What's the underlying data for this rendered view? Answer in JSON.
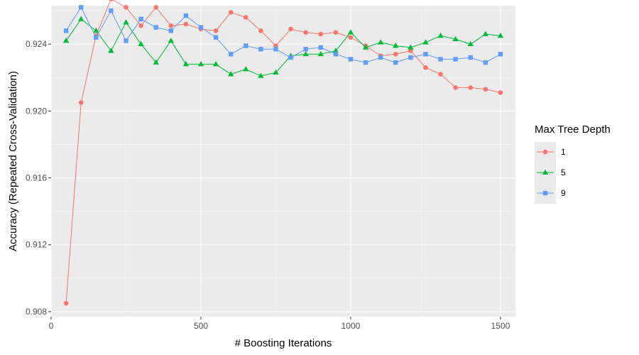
{
  "chart_data": {
    "type": "line",
    "title": "",
    "xlabel": "# Boosting Iterations",
    "ylabel": "Accuracy (Repeated Cross-Validation)",
    "xlim": [
      0,
      1550
    ],
    "ylim": [
      0.9077,
      0.9263
    ],
    "xticks": [
      0,
      500,
      1000,
      1500
    ],
    "xtick_labels": [
      "0",
      "500",
      "1000",
      "1500"
    ],
    "yticks": [
      0.908,
      0.912,
      0.916,
      0.92,
      0.924
    ],
    "ytick_labels": [
      "0.908",
      "0.912",
      "0.916",
      "0.920",
      "0.924"
    ],
    "grid": true,
    "legend": {
      "title": "Max Tree Depth",
      "position": "right"
    },
    "x": [
      50,
      100,
      150,
      200,
      250,
      300,
      350,
      400,
      450,
      500,
      550,
      600,
      650,
      700,
      750,
      800,
      850,
      900,
      950,
      1000,
      1050,
      1100,
      1150,
      1200,
      1250,
      1300,
      1350,
      1400,
      1450,
      1500
    ],
    "series": [
      {
        "name": "1",
        "color": "#F8766D",
        "marker": "circle",
        "values": [
          0.9085,
          0.9205,
          0.9245,
          0.9267,
          0.9262,
          0.9251,
          0.9262,
          0.9251,
          0.9252,
          0.9249,
          0.9248,
          0.9259,
          0.9256,
          0.9248,
          0.9239,
          0.9249,
          0.9247,
          0.9246,
          0.9247,
          0.9244,
          0.9239,
          0.9233,
          0.9234,
          0.9236,
          0.9226,
          0.9222,
          0.9214,
          0.9214,
          0.9213,
          0.9211
        ]
      },
      {
        "name": "5",
        "color": "#00BA38",
        "marker": "triangle",
        "values": [
          0.9242,
          0.9255,
          0.9248,
          0.9236,
          0.9253,
          0.924,
          0.9229,
          0.9242,
          0.9228,
          0.9228,
          0.9228,
          0.9222,
          0.9225,
          0.9221,
          0.9223,
          0.9233,
          0.9234,
          0.9234,
          0.9236,
          0.9247,
          0.9238,
          0.9241,
          0.9239,
          0.9238,
          0.9241,
          0.9245,
          0.9243,
          0.924,
          0.9246,
          0.9245
        ]
      },
      {
        "name": "9",
        "color": "#619CFF",
        "marker": "square",
        "values": [
          0.9248,
          0.9262,
          0.9244,
          0.926,
          0.9242,
          0.9255,
          0.925,
          0.9248,
          0.9257,
          0.925,
          0.9244,
          0.9234,
          0.9239,
          0.9237,
          0.9237,
          0.9232,
          0.9237,
          0.9238,
          0.9234,
          0.9231,
          0.9229,
          0.9232,
          0.9229,
          0.9232,
          0.9234,
          0.9231,
          0.9231,
          0.9232,
          0.9229,
          0.9234
        ]
      }
    ]
  }
}
